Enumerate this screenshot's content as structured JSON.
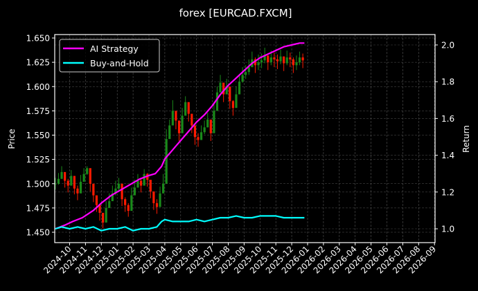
{
  "chart_data": {
    "type": "line",
    "title": "forex [EURCAD.FXCM]",
    "xlabel": "",
    "ylabel": "Price",
    "ylabel_right": "Return",
    "ylim": [
      1.441,
      1.655
    ],
    "ylim_right": [
      0.93,
      2.05
    ],
    "grid": true,
    "legend_position": "upper left",
    "x_tick_labels": [
      "2024-10",
      "2024-11",
      "2024-12",
      "2025-01",
      "2025-02",
      "2025-03",
      "2025-04",
      "2025-05",
      "2025-06",
      "2025-07",
      "2025-08",
      "2025-09",
      "2025-10",
      "2025-11",
      "2025-12",
      "2026-01",
      "2026-02",
      "2026-03",
      "2026-04",
      "2026-05",
      "2026-06",
      "2026-07",
      "2026-08",
      "2026-09"
    ],
    "y_tick_labels": [
      "1.450",
      "1.475",
      "1.500",
      "1.525",
      "1.550",
      "1.575",
      "1.600",
      "1.625",
      "1.650"
    ],
    "y_ticks": [
      1.45,
      1.475,
      1.5,
      1.525,
      1.55,
      1.575,
      1.6,
      1.625,
      1.65
    ],
    "y_right_tick_labels": [
      "1.0",
      "1.2",
      "1.4",
      "1.6",
      "1.8",
      "2.0"
    ],
    "y_right_ticks": [
      1.0,
      1.2,
      1.4,
      1.6,
      1.8,
      2.0
    ],
    "x_month_index_range": [
      -0.9,
      23.0
    ],
    "price_series": {
      "name": "EURCAD Price (candles)",
      "up_color": "#1a8a1a",
      "down_color": "#ff1a00",
      "x": [
        -0.9,
        -0.7,
        -0.5,
        -0.3,
        -0.1,
        0.1,
        0.3,
        0.5,
        0.7,
        0.9,
        1.1,
        1.3,
        1.5,
        1.7,
        1.9,
        2.1,
        2.3,
        2.5,
        2.7,
        2.9,
        3.1,
        3.3,
        3.5,
        3.7,
        3.9,
        4.1,
        4.3,
        4.5,
        4.7,
        4.9,
        5.1,
        5.3,
        5.5,
        5.7,
        5.9,
        6.1,
        6.3,
        6.5,
        6.7,
        6.9,
        7.1,
        7.3,
        7.5,
        7.7,
        7.9,
        8.1,
        8.3,
        8.5,
        8.7,
        8.9,
        9.1,
        9.3,
        9.5,
        9.7,
        9.9,
        10.1,
        10.3,
        10.5,
        10.7,
        10.9,
        11.1,
        11.3,
        11.5,
        11.7,
        11.9,
        12.1,
        12.3,
        12.5,
        12.7,
        12.9,
        13.1,
        13.3,
        13.5,
        13.7,
        13.9,
        14.1,
        14.3,
        14.5,
        14.7
      ],
      "close": [
        1.5,
        1.505,
        1.512,
        1.503,
        1.498,
        1.508,
        1.495,
        1.49,
        1.502,
        1.51,
        1.516,
        1.5,
        1.488,
        1.478,
        1.47,
        1.46,
        1.475,
        1.482,
        1.49,
        1.495,
        1.5,
        1.484,
        1.478,
        1.472,
        1.488,
        1.496,
        1.503,
        1.498,
        1.51,
        1.504,
        1.492,
        1.48,
        1.476,
        1.49,
        1.5,
        1.546,
        1.56,
        1.575,
        1.565,
        1.552,
        1.57,
        1.584,
        1.572,
        1.56,
        1.548,
        1.545,
        1.553,
        1.558,
        1.566,
        1.552,
        1.575,
        1.594,
        1.604,
        1.592,
        1.6,
        1.585,
        1.578,
        1.592,
        1.605,
        1.612,
        1.615,
        1.62,
        1.628,
        1.622,
        1.625,
        1.627,
        1.632,
        1.625,
        1.63,
        1.628,
        1.626,
        1.631,
        1.624,
        1.63,
        1.628,
        1.622,
        1.625,
        1.63,
        1.627
      ],
      "high": [
        1.506,
        1.511,
        1.518,
        1.51,
        1.505,
        1.514,
        1.502,
        1.498,
        1.509,
        1.516,
        1.518,
        1.508,
        1.496,
        1.486,
        1.478,
        1.468,
        1.482,
        1.49,
        1.498,
        1.503,
        1.506,
        1.492,
        1.486,
        1.48,
        1.496,
        1.504,
        1.51,
        1.505,
        1.515,
        1.511,
        1.5,
        1.488,
        1.484,
        1.497,
        1.51,
        1.556,
        1.566,
        1.586,
        1.574,
        1.562,
        1.578,
        1.59,
        1.58,
        1.568,
        1.556,
        1.552,
        1.56,
        1.565,
        1.573,
        1.56,
        1.584,
        1.6,
        1.612,
        1.6,
        1.608,
        1.592,
        1.586,
        1.6,
        1.613,
        1.62,
        1.622,
        1.628,
        1.636,
        1.63,
        1.633,
        1.634,
        1.64,
        1.632,
        1.637,
        1.635,
        1.633,
        1.638,
        1.631,
        1.637,
        1.635,
        1.63,
        1.632,
        1.636,
        1.634
      ],
      "low": [
        1.494,
        1.499,
        1.505,
        1.496,
        1.491,
        1.501,
        1.489,
        1.483,
        1.495,
        1.503,
        1.509,
        1.492,
        1.481,
        1.471,
        1.462,
        1.454,
        1.467,
        1.475,
        1.483,
        1.488,
        1.493,
        1.477,
        1.471,
        1.466,
        1.481,
        1.489,
        1.496,
        1.491,
        1.503,
        1.497,
        1.485,
        1.473,
        1.469,
        1.483,
        1.493,
        1.505,
        1.552,
        1.566,
        1.556,
        1.544,
        1.562,
        1.576,
        1.564,
        1.552,
        1.54,
        1.538,
        1.545,
        1.551,
        1.558,
        1.544,
        1.566,
        1.586,
        1.596,
        1.584,
        1.592,
        1.577,
        1.57,
        1.584,
        1.597,
        1.604,
        1.608,
        1.612,
        1.62,
        1.614,
        1.617,
        1.619,
        1.624,
        1.617,
        1.622,
        1.62,
        1.618,
        1.623,
        1.616,
        1.622,
        1.62,
        1.614,
        1.617,
        1.622,
        1.619
      ]
    },
    "series": [
      {
        "name": "AI Strategy",
        "color": "#ff00ff",
        "axis": "right",
        "x": [
          -0.9,
          -0.3,
          0.2,
          0.8,
          1.5,
          2.0,
          2.6,
          3.2,
          3.8,
          4.4,
          5.0,
          5.4,
          5.8,
          6.0,
          6.4,
          7.0,
          7.5,
          8.0,
          8.5,
          9.0,
          9.5,
          10.0,
          10.5,
          11.0,
          11.5,
          12.0,
          12.5,
          13.0,
          13.5,
          14.0,
          14.5,
          14.8
        ],
        "values": [
          1.0,
          1.02,
          1.04,
          1.06,
          1.1,
          1.14,
          1.18,
          1.21,
          1.24,
          1.27,
          1.29,
          1.3,
          1.34,
          1.38,
          1.42,
          1.48,
          1.53,
          1.58,
          1.62,
          1.67,
          1.73,
          1.78,
          1.82,
          1.86,
          1.9,
          1.93,
          1.95,
          1.97,
          1.99,
          2.0,
          2.01,
          2.01
        ]
      },
      {
        "name": "Buy-and-Hold",
        "color": "#00ffff",
        "axis": "right",
        "x": [
          -0.9,
          -0.5,
          0,
          0.5,
          1.0,
          1.5,
          2.0,
          2.5,
          3.0,
          3.5,
          4.0,
          4.5,
          5.0,
          5.5,
          5.8,
          6.0,
          6.5,
          7.0,
          7.5,
          8.0,
          8.5,
          9.0,
          9.5,
          10.0,
          10.5,
          11.0,
          11.5,
          12.0,
          12.5,
          13.0,
          13.5,
          14.0,
          14.5,
          14.8
        ],
        "values": [
          1.0,
          1.01,
          1.0,
          1.01,
          1.0,
          1.01,
          0.99,
          1.0,
          1.0,
          1.01,
          0.99,
          1.0,
          1.0,
          1.01,
          1.04,
          1.05,
          1.04,
          1.04,
          1.04,
          1.05,
          1.04,
          1.05,
          1.06,
          1.06,
          1.07,
          1.06,
          1.06,
          1.07,
          1.07,
          1.07,
          1.06,
          1.06,
          1.06,
          1.06
        ]
      }
    ]
  },
  "legend": {
    "items": [
      {
        "label": "AI Strategy",
        "color": "#ff00ff"
      },
      {
        "label": "Buy-and-Hold",
        "color": "#00ffff"
      }
    ]
  }
}
